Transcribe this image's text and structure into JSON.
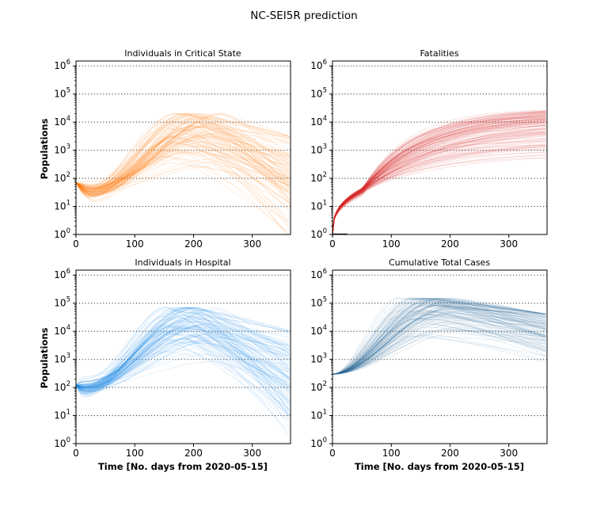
{
  "figure": {
    "title": "NC-SEI5R prediction"
  },
  "chart_data": [
    {
      "type": "line",
      "title": "Individuals in Critical State",
      "xlabel": "",
      "ylabel": "Populations",
      "xlim": [
        0,
        365
      ],
      "ylim": [
        1,
        1500000
      ],
      "yscale": "log",
      "xticks": [
        0,
        100,
        200,
        300
      ],
      "ytick_exponents": [
        0,
        1,
        2,
        3,
        4,
        5,
        6
      ],
      "grid": "horizontal dotted at decades",
      "color": "#ff7f0e",
      "ensemble": {
        "runs": 100,
        "start": 70,
        "dip_day": 25,
        "dip_value": 35,
        "median_peak_day": 200,
        "median_peak_value": 5000,
        "peak_day_range": [
          150,
          250
        ],
        "peak_value_range": [
          50,
          20000
        ],
        "end_value_range": [
          1,
          3000
        ]
      }
    },
    {
      "type": "line",
      "title": "Fatalities",
      "xlabel": "",
      "ylabel": "",
      "xlim": [
        0,
        365
      ],
      "ylim": [
        1,
        1500000
      ],
      "yscale": "log",
      "xticks": [
        0,
        100,
        200,
        300
      ],
      "ytick_exponents": [
        0,
        1,
        2,
        3,
        4,
        5,
        6
      ],
      "grid": "horizontal dotted at decades",
      "color": "#d62728",
      "observed": {
        "x": [
          0,
          25
        ],
        "y": [
          1,
          1
        ],
        "color": "#000000"
      },
      "ensemble": {
        "runs": 100,
        "start": 1,
        "value_at_day_50": 35,
        "final_value_range": [
          130,
          30000
        ],
        "median_final_value": 10000
      }
    },
    {
      "type": "line",
      "title": "Individuals in Hospital",
      "xlabel": "Time [No. days from 2020-05-15]",
      "ylabel": "Populations",
      "xlim": [
        0,
        365
      ],
      "ylim": [
        1,
        1500000
      ],
      "yscale": "log",
      "xticks": [
        0,
        100,
        200,
        300
      ],
      "ytick_exponents": [
        0,
        1,
        2,
        3,
        4,
        5,
        6
      ],
      "grid": "horizontal dotted at decades",
      "color": "#1e88e5",
      "ensemble": {
        "runs": 100,
        "start": 120,
        "dip_day": 15,
        "dip_value": 90,
        "median_peak_day": 190,
        "median_peak_value": 20000,
        "peak_day_range": [
          150,
          240
        ],
        "peak_value_range": [
          100,
          70000
        ],
        "end_value_range": [
          1,
          10000
        ]
      }
    },
    {
      "type": "line",
      "title": "Cumulative Total Cases",
      "xlabel": "Time [No. days from 2020-05-15]",
      "ylabel": "",
      "xlim": [
        0,
        365
      ],
      "ylim": [
        1,
        1500000
      ],
      "yscale": "log",
      "xticks": [
        0,
        100,
        200,
        300
      ],
      "ytick_exponents": [
        0,
        1,
        2,
        3,
        4,
        5,
        6
      ],
      "grid": "horizontal dotted at decades",
      "color": "#2b6f9e",
      "ensemble": {
        "runs": 100,
        "start": 300,
        "median_peak_day": 170,
        "median_peak_value": 60000,
        "peak_day_range": [
          110,
          240
        ],
        "peak_value_range": [
          800,
          150000
        ],
        "end_value_range": [
          300,
          40000
        ]
      }
    }
  ]
}
